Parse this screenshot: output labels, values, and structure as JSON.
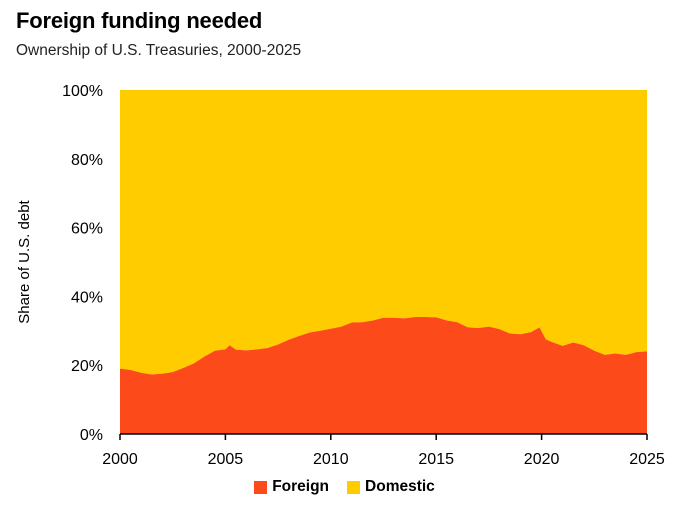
{
  "title": "Foreign funding needed",
  "subtitle": "Ownership of U.S. Treasuries, 2000-2025",
  "colors": {
    "foreign": "#fc4a1a",
    "domestic": "#ffcc00"
  },
  "chart_data": {
    "type": "area",
    "stacked": true,
    "ylabel": "Share of U.S. debt",
    "xlabel": "",
    "xlim": [
      2000,
      2025
    ],
    "ylim": [
      0,
      100
    ],
    "x_ticks": [
      "2000",
      "2005",
      "2010",
      "2015",
      "2020",
      "2025"
    ],
    "y_ticks": [
      "0%",
      "20%",
      "40%",
      "60%",
      "80%",
      "100%"
    ],
    "legend_position": "bottom-center",
    "legend": [
      "Foreign",
      "Domestic"
    ],
    "x": [
      2000,
      2000.5,
      2001,
      2001.5,
      2002,
      2002.5,
      2003,
      2003.5,
      2004,
      2004.5,
      2005,
      2005.2,
      2005.5,
      2006,
      2006.5,
      2007,
      2007.5,
      2008,
      2008.5,
      2009,
      2009.5,
      2010,
      2010.5,
      2011,
      2011.5,
      2012,
      2012.5,
      2013,
      2013.5,
      2014,
      2014.5,
      2015,
      2015.5,
      2016,
      2016.5,
      2017,
      2017.5,
      2018,
      2018.5,
      2019,
      2019.5,
      2019.9,
      2020.2,
      2020.5,
      2021,
      2021.5,
      2022,
      2022.5,
      2023,
      2023.5,
      2024,
      2024.5,
      2024.9
    ],
    "series": [
      {
        "name": "Foreign",
        "values": [
          19,
          18.6,
          17.8,
          17.3,
          17.5,
          18,
          19.2,
          20.5,
          22.5,
          24.2,
          24.6,
          25.8,
          24.5,
          24.3,
          24.6,
          25,
          26,
          27.4,
          28.5,
          29.5,
          30,
          30.6,
          31.2,
          32.4,
          32.5,
          33,
          33.8,
          33.8,
          33.6,
          34,
          34,
          33.9,
          33,
          32.5,
          31,
          30.8,
          31.2,
          30.5,
          29.2,
          29,
          29.6,
          31,
          27.5,
          26.7,
          25.6,
          26.6,
          25.8,
          24.2,
          23,
          23.4,
          23,
          23.8,
          24
        ]
      },
      {
        "name": "Domestic",
        "values": [
          81,
          81.4,
          82.2,
          82.7,
          82.5,
          82,
          80.8,
          79.5,
          77.5,
          75.8,
          75.4,
          74.2,
          75.5,
          75.7,
          75.4,
          75,
          74,
          72.6,
          71.5,
          70.5,
          70,
          69.4,
          68.8,
          67.6,
          67.5,
          67,
          66.2,
          66.2,
          66.4,
          66,
          66,
          66.1,
          67,
          67.5,
          69,
          69.2,
          68.8,
          69.5,
          70.8,
          71,
          70.4,
          69,
          72.5,
          73.3,
          74.4,
          73.4,
          74.2,
          75.8,
          77,
          76.6,
          77,
          76.2,
          76
        ]
      }
    ]
  }
}
